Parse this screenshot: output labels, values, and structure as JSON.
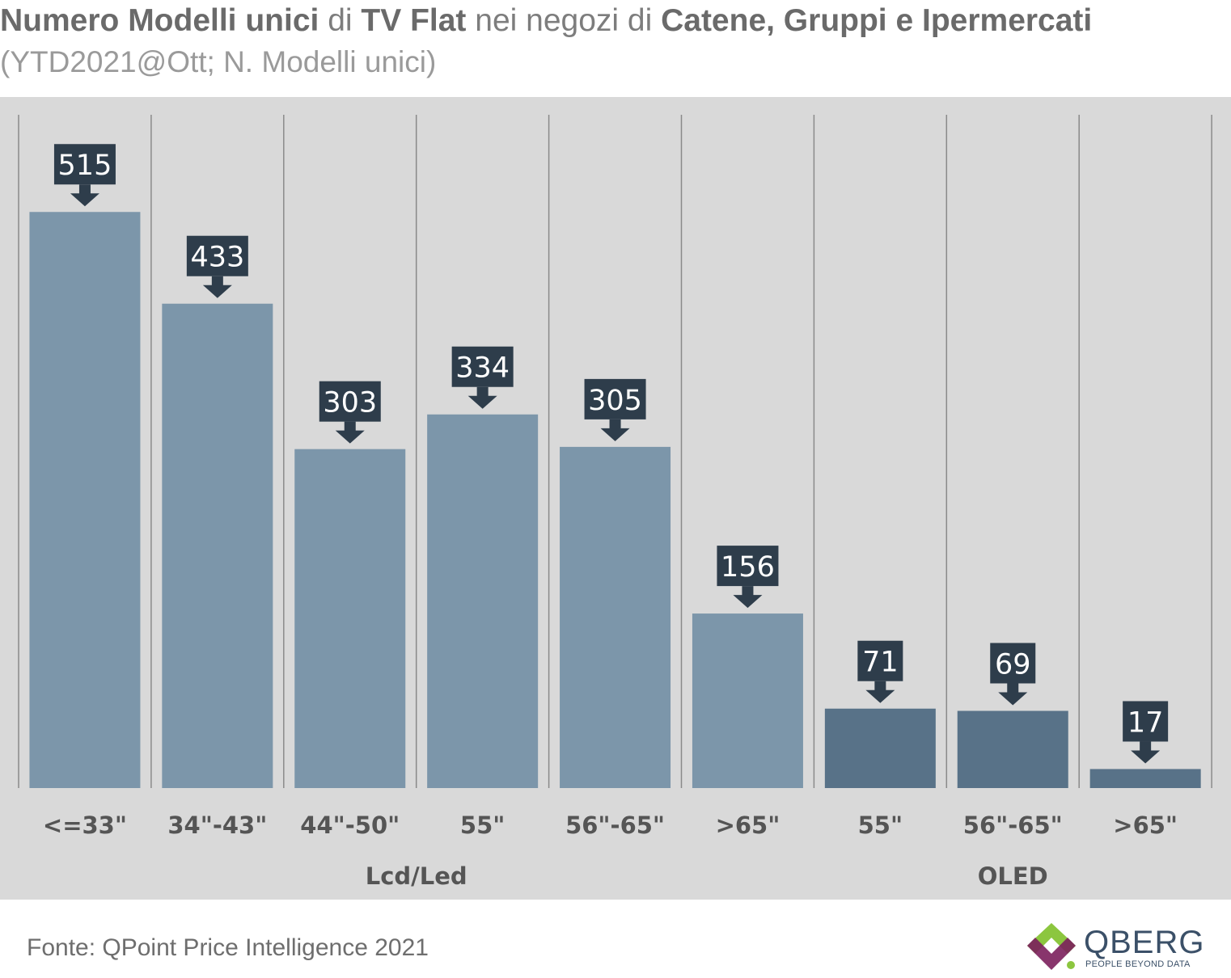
{
  "title": {
    "part1": "Numero Modelli unici",
    "part2": " di ",
    "part3": "TV Flat",
    "part4": " nei negozi di ",
    "part5": "Catene, Gruppi e Ipermercati"
  },
  "subtitle": "(YTD2021@Ott; N. Modelli unici)",
  "source": "Fonte: QPoint Price Intelligence 2021",
  "logo": {
    "name": "QBERG",
    "tagline": "PEOPLE BEYOND DATA",
    "icon": "qberg-logo-icon"
  },
  "colors": {
    "background": "#d9d9d9",
    "lcd_bar": "#7c96aa",
    "oled_bar": "#587288",
    "label_box": "#2e3d4b",
    "label_text": "#ffffff",
    "divider": "#8a8a8a",
    "tick_text": "#555555",
    "logo_green": "#8cc63f",
    "logo_purple": "#7b1f5c"
  },
  "chart_data": {
    "type": "bar",
    "title": "Numero Modelli unici di TV Flat nei negozi di Catene, Gruppi e Ipermercati",
    "subtitle": "(YTD2021@Ott; N. Modelli unici)",
    "categories": [
      "<=33\"",
      "34\"-43\"",
      "44\"-50\"",
      "55\"",
      "56\"-65\"",
      ">65\"",
      "55\"",
      "56\"-65\"",
      ">65\""
    ],
    "values": [
      515,
      433,
      303,
      334,
      305,
      156,
      71,
      69,
      17
    ],
    "groups": [
      {
        "name": "Lcd/Led",
        "categories": [
          "<=33\"",
          "34\"-43\"",
          "44\"-50\"",
          "55\"",
          "56\"-65\"",
          ">65\""
        ],
        "values": [
          515,
          433,
          303,
          334,
          305,
          156
        ]
      },
      {
        "name": "OLED",
        "categories": [
          "55\"",
          "56\"-65\"",
          ">65\""
        ],
        "values": [
          71,
          69,
          17
        ]
      }
    ],
    "data_labels": [
      "515",
      "433",
      "303",
      "334",
      "305",
      "156",
      "71",
      "69",
      "17"
    ],
    "ylim": [
      0,
      600
    ],
    "grid": false,
    "legend": "none",
    "xlabel": "",
    "ylabel": ""
  }
}
